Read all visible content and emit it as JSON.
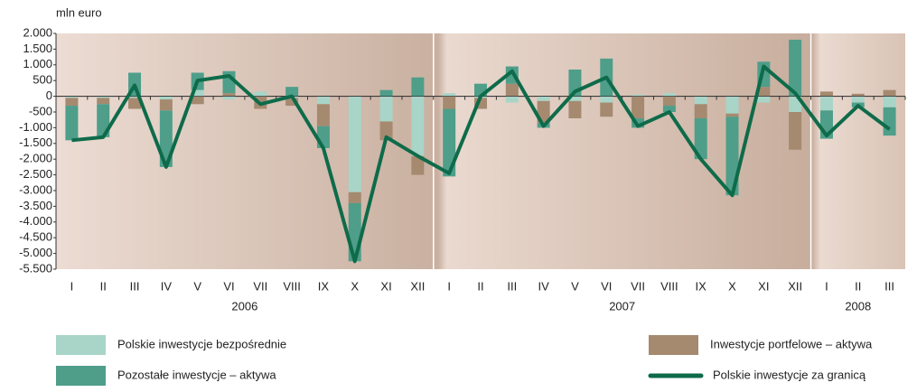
{
  "chart_data": {
    "type": "bar",
    "y_label": "mln euro",
    "categories": [
      "I",
      "II",
      "III",
      "IV",
      "V",
      "VI",
      "VII",
      "VIII",
      "IX",
      "X",
      "XI",
      "XII",
      "I",
      "II",
      "III",
      "IV",
      "V",
      "VI",
      "VII",
      "VIII",
      "IX",
      "X",
      "XI",
      "XII",
      "I",
      "II",
      "III"
    ],
    "years": [
      "2006",
      "2007",
      "2008"
    ],
    "series": [
      {
        "name": "Polskie inwestycje bezpośrednie",
        "color": "#a8d5c8",
        "values": [
          -50,
          -50,
          -50,
          -100,
          200,
          -100,
          150,
          -50,
          -250,
          -3050,
          -800,
          -1900,
          100,
          -50,
          -200,
          -150,
          -150,
          -200,
          50,
          100,
          -250,
          -550,
          -200,
          -500,
          -450,
          -200,
          -350
        ]
      },
      {
        "name": "Inwestycje portfelowe – aktywa",
        "color": "#a58a70",
        "values": [
          -250,
          -200,
          -350,
          -350,
          -250,
          100,
          -400,
          -250,
          -700,
          -350,
          -600,
          -600,
          -400,
          -350,
          400,
          -700,
          -550,
          -450,
          -700,
          -300,
          -450,
          -100,
          300,
          -1200,
          150,
          80,
          200
        ]
      },
      {
        "name": "Pozostałe inwestycje – aktywa",
        "color": "#4e9e8a",
        "values": [
          -1100,
          -1050,
          750,
          -1800,
          550,
          700,
          0,
          300,
          -700,
          -1850,
          200,
          600,
          -2150,
          400,
          550,
          -150,
          850,
          1200,
          -300,
          -200,
          -1300,
          -2500,
          800,
          1800,
          -900,
          -150,
          -900
        ]
      },
      {
        "name": "Polskie inwestycje za granicą",
        "type": "line",
        "color": "#0e6b4a",
        "values": [
          -1400,
          -1300,
          350,
          -2250,
          500,
          650,
          -250,
          0,
          -1650,
          -5250,
          -1300,
          -1900,
          -2450,
          0,
          800,
          -950,
          150,
          600,
          -950,
          -500,
          -2000,
          -3150,
          950,
          100,
          -1250,
          -300,
          -1050
        ]
      }
    ],
    "ylim": [
      -5500,
      2000
    ],
    "yticks": [
      {
        "value": 2000,
        "label": "2.000"
      },
      {
        "value": 1500,
        "label": "1.500"
      },
      {
        "value": 1000,
        "label": "1.000"
      },
      500,
      0,
      -500,
      {
        "value": -1000,
        "label": "-1.000"
      },
      {
        "value": -1500,
        "label": "-1.500"
      },
      {
        "value": -2000,
        "label": "-2.000"
      },
      {
        "value": -2500,
        "label": "-2.500"
      },
      {
        "value": -3000,
        "label": "-3.000"
      },
      {
        "value": -3500,
        "label": "-3.500"
      },
      {
        "value": -4000,
        "label": "-4.000"
      },
      {
        "value": -4500,
        "label": "-4.500"
      },
      {
        "value": -5000,
        "label": "-5.000"
      },
      {
        "value": -5500,
        "label": "-5.500"
      }
    ],
    "grid": false
  }
}
